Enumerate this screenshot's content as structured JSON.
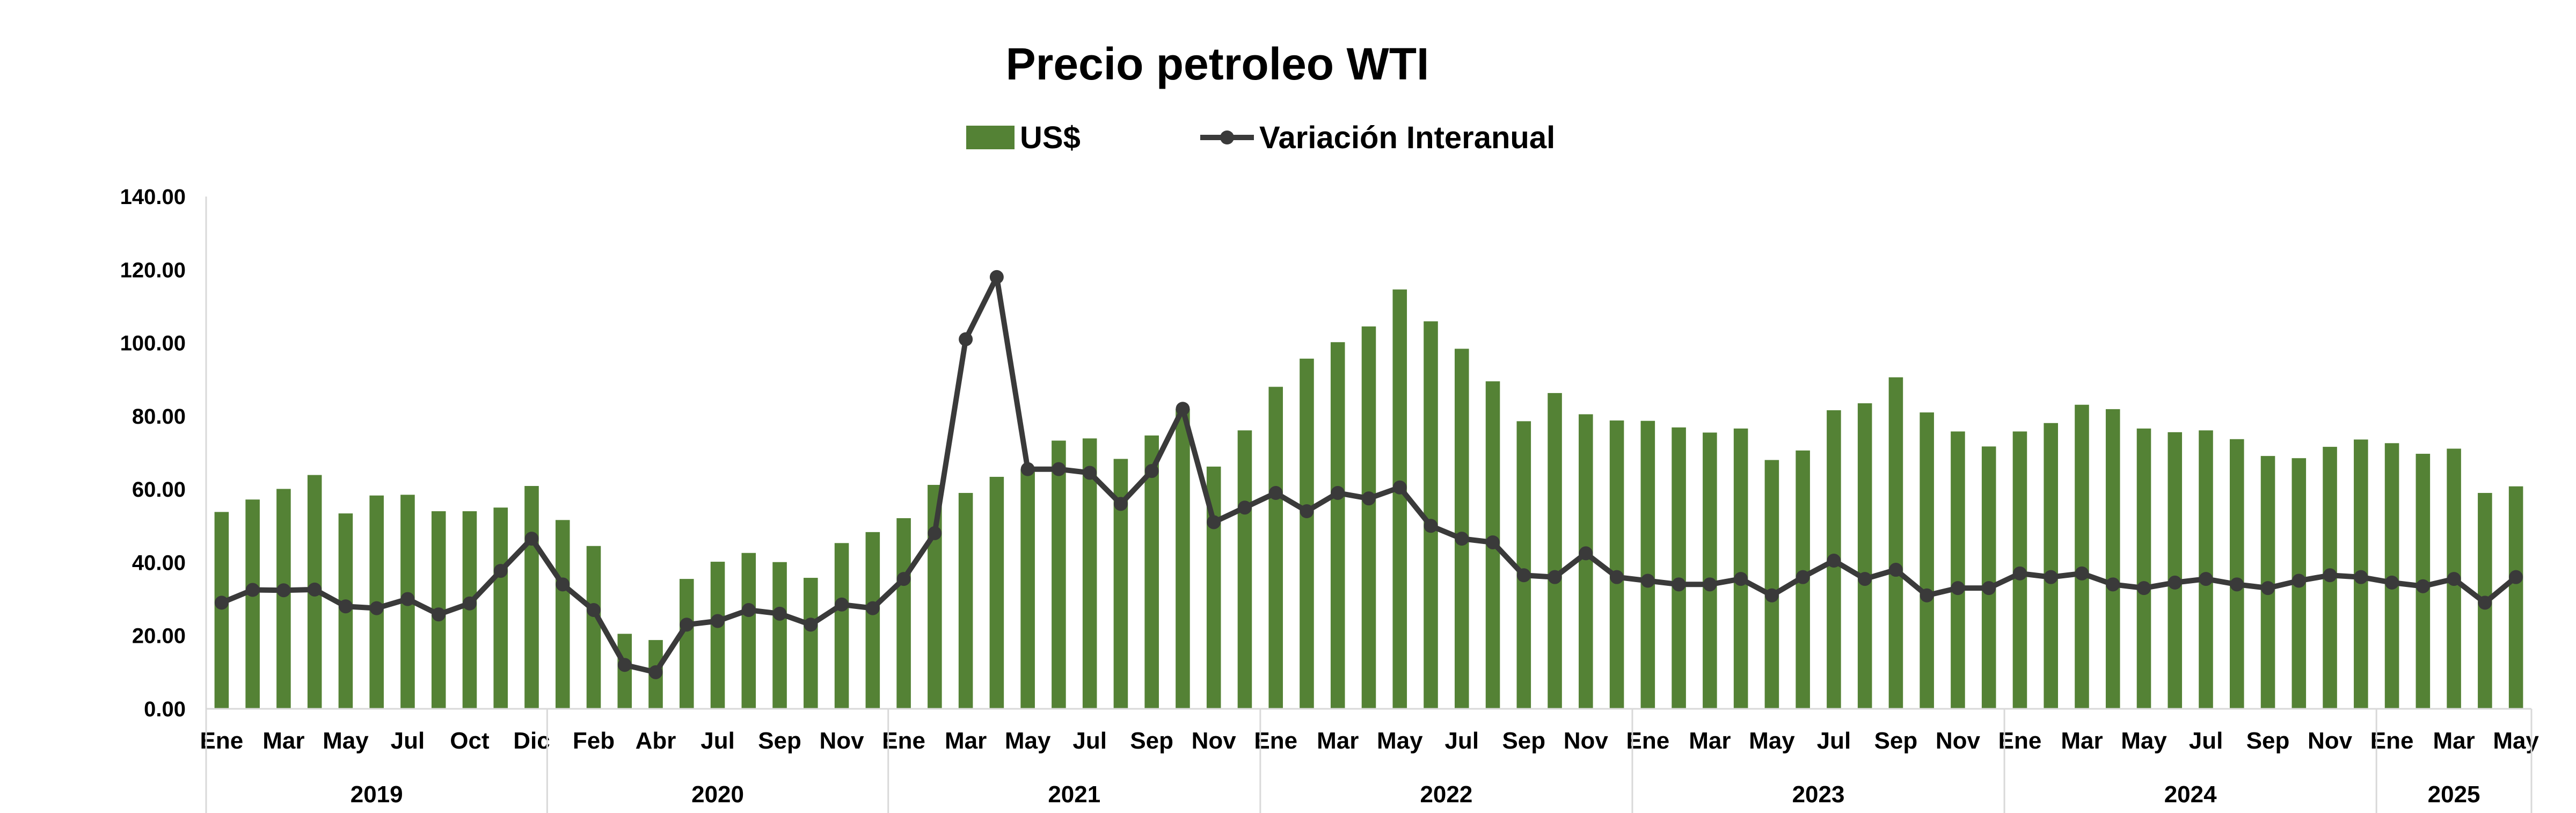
{
  "chart_data": {
    "type": "bar",
    "title": "Precio petroleo WTI",
    "legend": {
      "bars": "US$",
      "line": "Variación Interanual",
      "position": "top-center"
    },
    "colors": {
      "bars": "#548235",
      "line": "#3a3a3a",
      "axis": "#d9d9d9"
    },
    "ylim": [
      0,
      140
    ],
    "yticks": [
      "0.00",
      "20.00",
      "40.00",
      "60.00",
      "80.00",
      "100.00",
      "120.00",
      "140.00"
    ],
    "month_labels": [
      "Ene",
      "Mar",
      "May",
      "Jul",
      "Oct",
      "Dic",
      "Feb",
      "Abr",
      "Jul",
      "Sep",
      "Nov",
      "Ene",
      "Mar",
      "May",
      "Jul",
      "Sep",
      "Nov",
      "Ene",
      "Mar",
      "May",
      "Jul",
      "Sep",
      "Nov",
      "Ene",
      "Mar",
      "May",
      "Jul",
      "Sep",
      "Nov",
      "Ene",
      "Mar",
      "May",
      "Jul",
      "Sep",
      "Nov",
      "Ene",
      "Mar",
      "May"
    ],
    "month_label_index": [
      0,
      2,
      4,
      6,
      8,
      10,
      12,
      14,
      16,
      18,
      20,
      22,
      24,
      26,
      28,
      30,
      32,
      34,
      36,
      38,
      40,
      42,
      44,
      46,
      48,
      50,
      52,
      54,
      56,
      58,
      60,
      62,
      64,
      66,
      68,
      70,
      72,
      74
    ],
    "years": [
      {
        "label": "2019",
        "count": 11
      },
      {
        "label": "2020",
        "count": 11
      },
      {
        "label": "2021",
        "count": 12
      },
      {
        "label": "2022",
        "count": 12
      },
      {
        "label": "2023",
        "count": 12
      },
      {
        "label": "2024",
        "count": 12
      },
      {
        "label": "2025",
        "count": 5
      }
    ],
    "series": [
      {
        "name": "US$",
        "type": "bar",
        "values": [
          53.8,
          57.2,
          60.1,
          63.9,
          53.4,
          58.3,
          58.5,
          54.0,
          54.0,
          55.0,
          60.9,
          51.6,
          44.5,
          20.5,
          18.8,
          35.5,
          40.2,
          42.6,
          40.1,
          35.8,
          45.3,
          48.3,
          52.1,
          61.2,
          59.0,
          63.4,
          65.5,
          73.3,
          73.9,
          68.3,
          74.7,
          82.0,
          66.2,
          76.1,
          88.0,
          95.7,
          100.2,
          104.5,
          114.6,
          105.9,
          98.4,
          89.5,
          78.6,
          86.3,
          80.5,
          78.8,
          78.7,
          76.9,
          75.5,
          76.6,
          68.0,
          70.6,
          81.6,
          83.5,
          90.6,
          81.0,
          75.8,
          71.7,
          75.8,
          78.1,
          83.1,
          81.9,
          76.6,
          75.6,
          76.1,
          73.7,
          69.1,
          68.5,
          71.6,
          73.6,
          72.6,
          69.7,
          71.1,
          59.0,
          60.8
        ]
      },
      {
        "name": "Variación Interanual",
        "type": "line",
        "values": [
          29,
          32.5,
          32.4,
          32.6,
          28,
          27.5,
          30,
          25.8,
          28.8,
          37.7,
          46.5,
          34,
          27,
          12,
          10,
          23,
          24,
          27,
          26,
          23,
          28.5,
          27.5,
          35.5,
          48,
          101,
          118,
          65.5,
          65.5,
          64.5,
          56,
          65,
          82,
          51,
          55,
          59,
          54,
          59,
          57.5,
          60.5,
          50,
          46.5,
          45.5,
          36.5,
          36,
          42.5,
          36,
          35,
          34,
          34,
          35.5,
          31,
          36,
          40.5,
          35.5,
          38,
          31,
          33,
          33,
          37,
          36,
          37,
          34,
          33,
          34.5,
          35.5,
          34,
          33,
          35,
          36.5,
          36,
          34.5,
          33.5,
          35.5,
          29,
          36
        ]
      }
    ]
  }
}
